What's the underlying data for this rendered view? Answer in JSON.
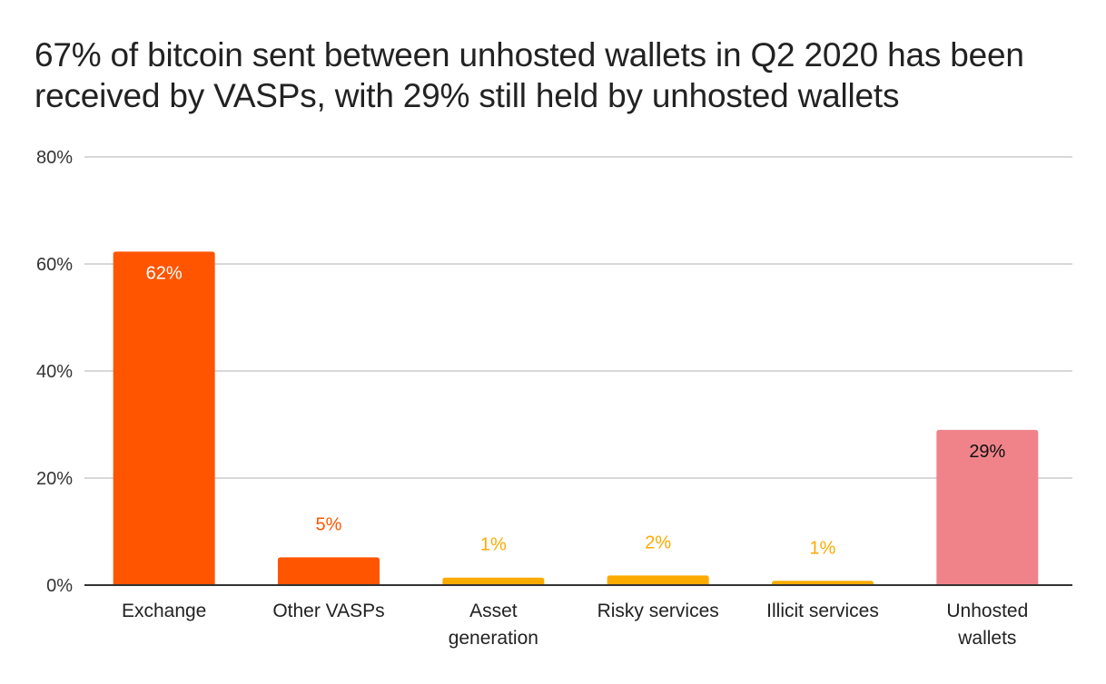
{
  "chart_data": {
    "type": "bar",
    "title": "67% of bitcoin sent between unhosted wallets in Q2 2020 has been received by VASPs, with 29% still held by unhosted wallets",
    "xlabel": "",
    "ylabel": "",
    "ylim": [
      0,
      80
    ],
    "yticks": [
      0,
      20,
      40,
      60,
      80
    ],
    "ytick_labels": [
      "0%",
      "20%",
      "40%",
      "60%",
      "80%"
    ],
    "grid": true,
    "legend": "none",
    "categories": [
      {
        "label": [
          "Exchange"
        ],
        "value": 62.3,
        "data_label": "62%",
        "color": "#ff5500",
        "label_color": "#ffffff",
        "label_inside": true
      },
      {
        "label": [
          "Other VASPs"
        ],
        "value": 5.2,
        "data_label": "5%",
        "color": "#ff5500",
        "label_color": "#ff5500",
        "label_inside": false
      },
      {
        "label": [
          "Asset",
          "generation"
        ],
        "value": 1.4,
        "data_label": "1%",
        "color": "#fbab00",
        "label_color": "#fbab00",
        "label_inside": false
      },
      {
        "label": [
          "Risky services"
        ],
        "value": 1.8,
        "data_label": "2%",
        "color": "#fbab00",
        "label_color": "#fbab00",
        "label_inside": false
      },
      {
        "label": [
          "Illicit services"
        ],
        "value": 0.8,
        "data_label": "1%",
        "color": "#fbab00",
        "label_color": "#fbab00",
        "label_inside": false
      },
      {
        "label": [
          "Unhosted",
          "wallets"
        ],
        "value": 29.0,
        "data_label": "29%",
        "color": "#f0838a",
        "label_color": "#111111",
        "label_inside": true
      }
    ],
    "colors": {
      "gridline": "#cccccc",
      "baseline": "#333333",
      "title": "#222222"
    }
  }
}
